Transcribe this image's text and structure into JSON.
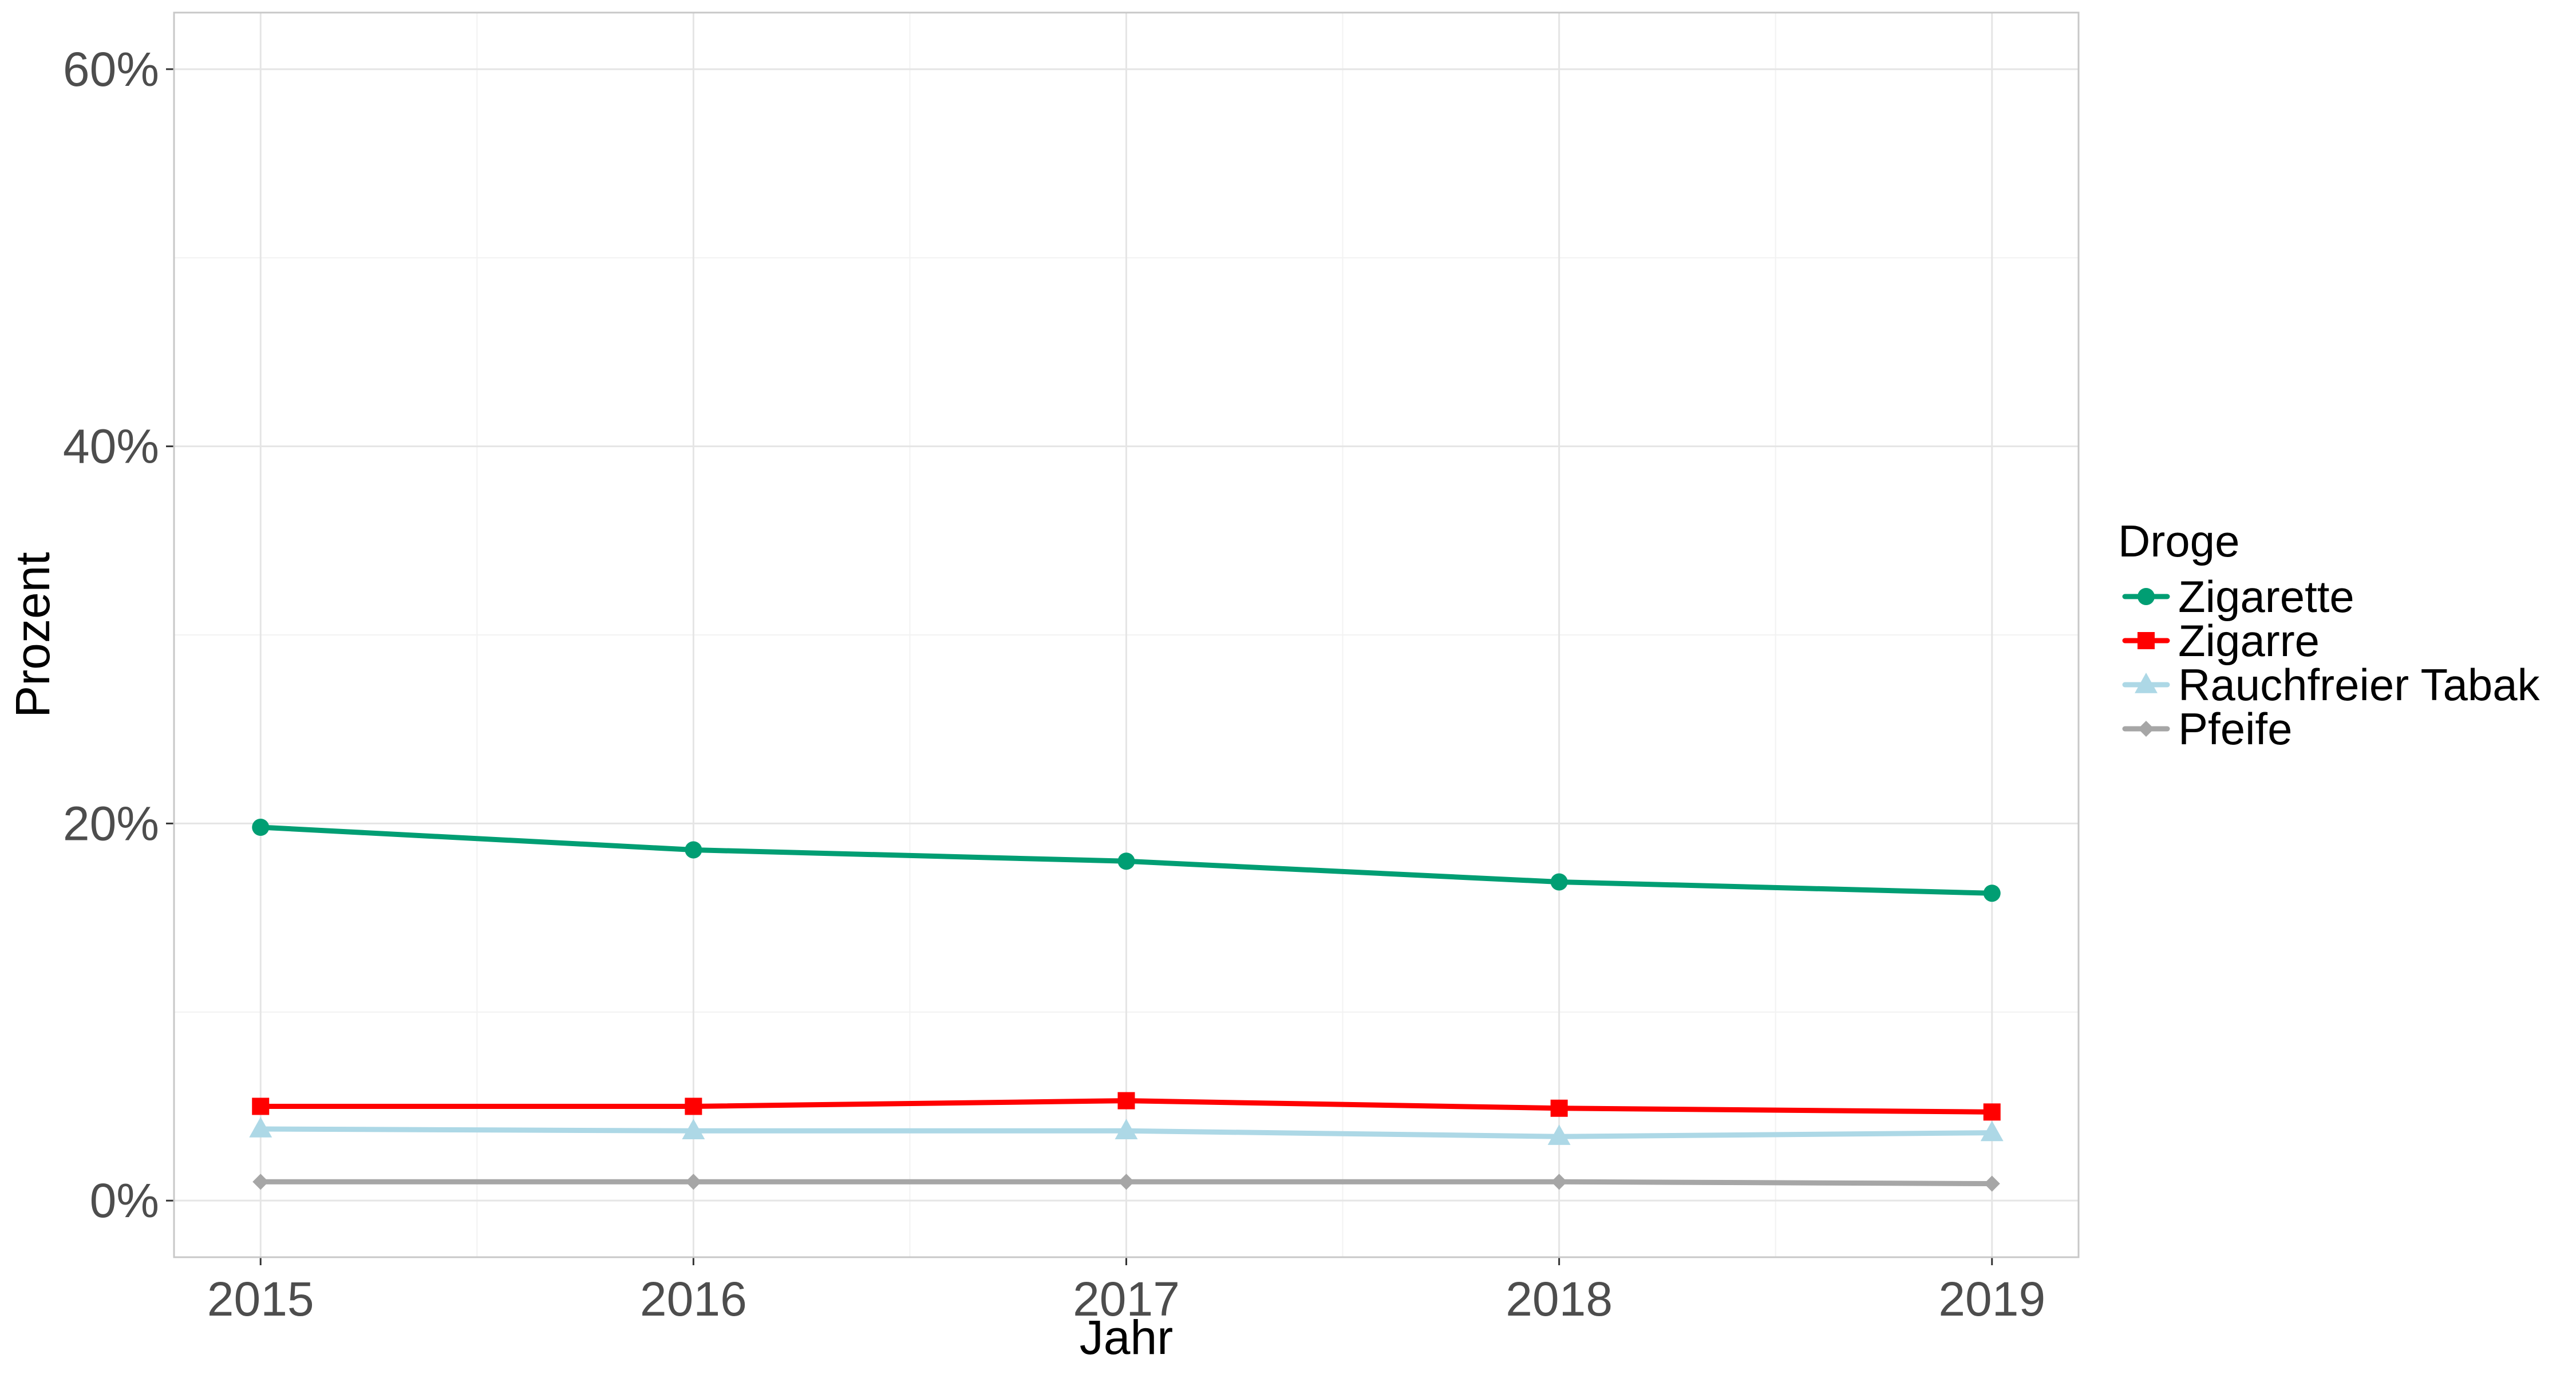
{
  "chart_data": {
    "type": "line",
    "xlabel": "Jahr",
    "ylabel": "Prozent",
    "x": [
      2015,
      2016,
      2017,
      2018,
      2019
    ],
    "x_tick_labels": [
      "2015",
      "2016",
      "2017",
      "2018",
      "2019"
    ],
    "ylim": [
      -3,
      63
    ],
    "y_ticks": [
      0,
      20,
      40,
      60
    ],
    "y_tick_labels": [
      "0%",
      "20%",
      "40%",
      "60%"
    ],
    "grid": true,
    "legend": {
      "title": "Droge",
      "position": "right"
    },
    "series": [
      {
        "name": "Zigarette",
        "color": "#009E73",
        "marker": "circle",
        "values": [
          19.8,
          18.6,
          18.0,
          16.9,
          16.3
        ]
      },
      {
        "name": "Zigarre",
        "color": "#FF0000",
        "marker": "square",
        "values": [
          5.0,
          5.0,
          5.3,
          4.9,
          4.7
        ]
      },
      {
        "name": "Rauchfreier Tabak",
        "color": "#ADD8E6",
        "marker": "triangle",
        "values": [
          3.8,
          3.7,
          3.7,
          3.4,
          3.6
        ]
      },
      {
        "name": "Pfeife",
        "color": "#A6A6A6",
        "marker": "diamond",
        "values": [
          1.0,
          1.0,
          1.0,
          1.0,
          0.9
        ]
      }
    ]
  }
}
